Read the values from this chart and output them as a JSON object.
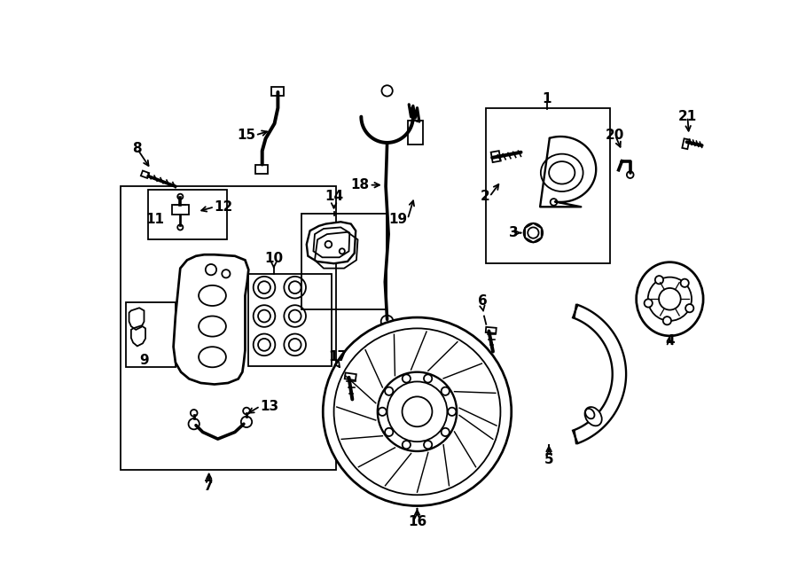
{
  "bg_color": "#ffffff",
  "line_color": "#000000",
  "figsize": [
    9.0,
    6.61
  ],
  "dpi": 100,
  "lw": 1.3
}
